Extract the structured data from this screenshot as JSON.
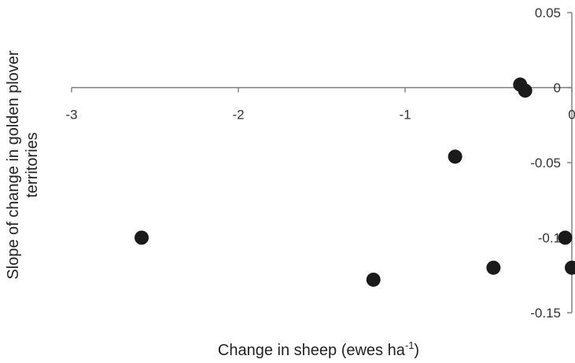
{
  "chart_data": {
    "type": "scatter",
    "title": "",
    "xlabel": "Change in sheep (ewes ha",
    "xlabel_sup": "-1",
    "xlabel_close": ")",
    "ylabel_line1": "Slope of change in golden plover",
    "ylabel_line2": "territories",
    "xlim": [
      -3,
      0
    ],
    "ylim": [
      -0.15,
      0.05
    ],
    "x_ticks": [
      {
        "value": -3,
        "label": "-3"
      },
      {
        "value": -2,
        "label": "-2"
      },
      {
        "value": -1,
        "label": "-1"
      },
      {
        "value": 0,
        "label": "0"
      }
    ],
    "y_ticks": [
      {
        "value": 0.05,
        "label": "0.05"
      },
      {
        "value": 0,
        "label": "0"
      },
      {
        "value": -0.05,
        "label": "-0.05"
      },
      {
        "value": -0.1,
        "label": "-0.1"
      },
      {
        "value": -0.15,
        "label": "-0.15"
      }
    ],
    "grid": false,
    "series": [
      {
        "points": [
          {
            "x": -2.58,
            "y": -0.1
          },
          {
            "x": -1.19,
            "y": -0.128
          },
          {
            "x": -0.7,
            "y": -0.046
          },
          {
            "x": -0.47,
            "y": -0.12
          },
          {
            "x": -0.31,
            "y": 0.002
          },
          {
            "x": -0.28,
            "y": -0.002
          },
          {
            "x": -0.04,
            "y": -0.1
          },
          {
            "x": 0.0,
            "y": -0.12
          }
        ]
      }
    ]
  }
}
